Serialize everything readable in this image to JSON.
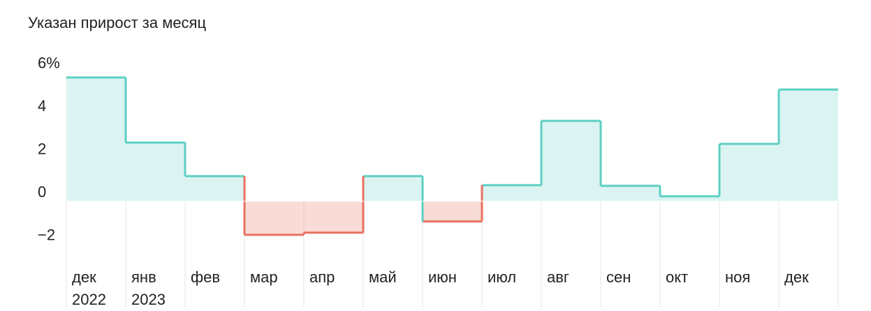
{
  "chart_data": {
    "type": "step-bar",
    "title": "Указан прирост за месяц",
    "categories": [
      "дек",
      "янв",
      "фев",
      "мар",
      "апр",
      "май",
      "июн",
      "июл",
      "авг",
      "сен",
      "окт",
      "ноя",
      "дек"
    ],
    "category_years": [
      "2022",
      "2023",
      null,
      null,
      null,
      null,
      null,
      null,
      null,
      null,
      null,
      null,
      null
    ],
    "values": [
      5.76,
      2.73,
      1.17,
      -1.56,
      -1.46,
      1.17,
      -0.94,
      0.75,
      3.74,
      0.72,
      0.23,
      2.67,
      5.2
    ],
    "positive_color": "#5ccfc2",
    "negative_color": "#e8705f",
    "ylim": [
      -3,
      6.5
    ],
    "yticks": [
      {
        "value": 6,
        "label": "6%"
      },
      4,
      2,
      0,
      {
        "value": -2,
        "label": "−2"
      }
    ]
  }
}
